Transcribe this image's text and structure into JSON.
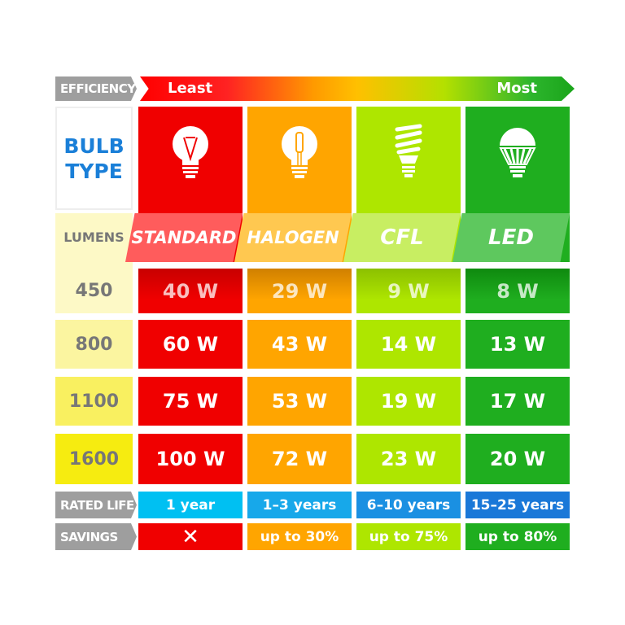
{
  "efficiency": {
    "label": "EFFICIENCY",
    "least": "Least",
    "most": "Most"
  },
  "header": {
    "bulb_type_line1": "BULB",
    "bulb_type_line2": "TYPE",
    "lumens_label": "LUMENS"
  },
  "colors": {
    "standard": "#f00000",
    "halogen": "#ffa500",
    "cfl": "#aee600",
    "led": "#1fae1f",
    "bulb_type_text": "#1a7fd8"
  },
  "bulbs": [
    {
      "name": "STANDARD",
      "icon": "incandescent-bulb-icon",
      "watts": [
        "40 W",
        "60 W",
        "75 W",
        "100 W"
      ],
      "life": "1 year",
      "savings": "✕"
    },
    {
      "name": "HALOGEN",
      "icon": "halogen-bulb-icon",
      "watts": [
        "29 W",
        "43 W",
        "53 W",
        "72 W"
      ],
      "life": "1–3 years",
      "savings": "up to 30%"
    },
    {
      "name": "CFL",
      "icon": "cfl-bulb-icon",
      "watts": [
        "9 W",
        "14 W",
        "19 W",
        "23 W"
      ],
      "life": "6–10 years",
      "savings": "up to 75%"
    },
    {
      "name": "LED",
      "icon": "led-bulb-icon",
      "watts": [
        "8 W",
        "13 W",
        "17 W",
        "20 W"
      ],
      "life": "15–25 years",
      "savings": "up to 80%"
    }
  ],
  "lumens": [
    "450",
    "800",
    "1100",
    "1600"
  ],
  "rated_life_label": "RATED LIFE",
  "savings_label": "SAVINGS"
}
